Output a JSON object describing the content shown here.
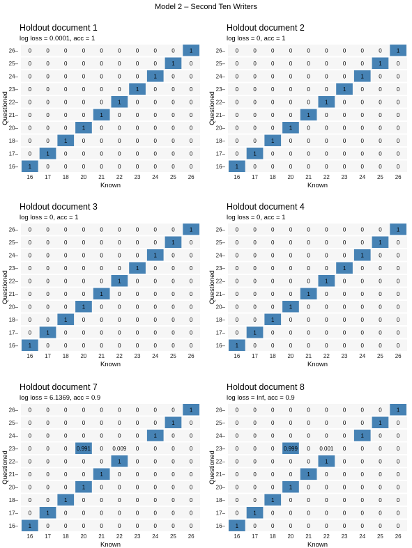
{
  "title": "Model 2 – Second Ten Writers",
  "colors": {
    "highlight": "#4682b4",
    "background": "#ffffff",
    "band": "#ececec"
  },
  "chart_data": [
    {
      "type": "heatmap",
      "title": "Holdout document 1",
      "subtitle": "log loss = 0.0001, acc = 1",
      "xlabel": "Known",
      "ylabel": "Questioned",
      "x": [
        "16",
        "17",
        "18",
        "20",
        "21",
        "22",
        "23",
        "24",
        "25",
        "26"
      ],
      "y": [
        "26",
        "25",
        "24",
        "23",
        "22",
        "21",
        "20",
        "18",
        "17",
        "16"
      ],
      "values": [
        [
          "0",
          "0",
          "0",
          "0",
          "0",
          "0",
          "0",
          "0",
          "0",
          "1"
        ],
        [
          "0",
          "0",
          "0",
          "0",
          "0",
          "0",
          "0",
          "0",
          "1",
          "0"
        ],
        [
          "0",
          "0",
          "0",
          "0",
          "0",
          "0",
          "0",
          "1",
          "0",
          "0"
        ],
        [
          "0",
          "0",
          "0",
          "0",
          "0",
          "0",
          "1",
          "0",
          "0",
          "0"
        ],
        [
          "0",
          "0",
          "0",
          "0",
          "0",
          "1",
          "0",
          "0",
          "0",
          "0"
        ],
        [
          "0",
          "0",
          "0",
          "0",
          "1",
          "0",
          "0",
          "0",
          "0",
          "0"
        ],
        [
          "0",
          "0",
          "0",
          "1",
          "0",
          "0",
          "0",
          "0",
          "0",
          "0"
        ],
        [
          "0",
          "0",
          "1",
          "0",
          "0",
          "0",
          "0",
          "0",
          "0",
          "0"
        ],
        [
          "0",
          "1",
          "0",
          "0",
          "0",
          "0",
          "0",
          "0",
          "0",
          "0"
        ],
        [
          "1",
          "0",
          "0",
          "0",
          "0",
          "0",
          "0",
          "0",
          "0",
          "0"
        ]
      ]
    },
    {
      "type": "heatmap",
      "title": "Holdout document 2",
      "subtitle": "log loss = 0, acc = 1",
      "xlabel": "Known",
      "ylabel": "Questioned",
      "x": [
        "16",
        "17",
        "18",
        "20",
        "21",
        "22",
        "23",
        "24",
        "25",
        "26"
      ],
      "y": [
        "26",
        "25",
        "24",
        "23",
        "22",
        "21",
        "20",
        "18",
        "17",
        "16"
      ],
      "values": [
        [
          "0",
          "0",
          "0",
          "0",
          "0",
          "0",
          "0",
          "0",
          "0",
          "1"
        ],
        [
          "0",
          "0",
          "0",
          "0",
          "0",
          "0",
          "0",
          "0",
          "1",
          "0"
        ],
        [
          "0",
          "0",
          "0",
          "0",
          "0",
          "0",
          "0",
          "1",
          "0",
          "0"
        ],
        [
          "0",
          "0",
          "0",
          "0",
          "0",
          "0",
          "1",
          "0",
          "0",
          "0"
        ],
        [
          "0",
          "0",
          "0",
          "0",
          "0",
          "1",
          "0",
          "0",
          "0",
          "0"
        ],
        [
          "0",
          "0",
          "0",
          "0",
          "1",
          "0",
          "0",
          "0",
          "0",
          "0"
        ],
        [
          "0",
          "0",
          "0",
          "1",
          "0",
          "0",
          "0",
          "0",
          "0",
          "0"
        ],
        [
          "0",
          "0",
          "1",
          "0",
          "0",
          "0",
          "0",
          "0",
          "0",
          "0"
        ],
        [
          "0",
          "1",
          "0",
          "0",
          "0",
          "0",
          "0",
          "0",
          "0",
          "0"
        ],
        [
          "1",
          "0",
          "0",
          "0",
          "0",
          "0",
          "0",
          "0",
          "0",
          "0"
        ]
      ]
    },
    {
      "type": "heatmap",
      "title": "Holdout document 3",
      "subtitle": "log loss = 0, acc = 1",
      "xlabel": "Known",
      "ylabel": "Questioned",
      "x": [
        "16",
        "17",
        "18",
        "20",
        "21",
        "22",
        "23",
        "24",
        "25",
        "26"
      ],
      "y": [
        "26",
        "25",
        "24",
        "23",
        "22",
        "21",
        "20",
        "18",
        "17",
        "16"
      ],
      "values": [
        [
          "0",
          "0",
          "0",
          "0",
          "0",
          "0",
          "0",
          "0",
          "0",
          "1"
        ],
        [
          "0",
          "0",
          "0",
          "0",
          "0",
          "0",
          "0",
          "0",
          "1",
          "0"
        ],
        [
          "0",
          "0",
          "0",
          "0",
          "0",
          "0",
          "0",
          "1",
          "0",
          "0"
        ],
        [
          "0",
          "0",
          "0",
          "0",
          "0",
          "0",
          "1",
          "0",
          "0",
          "0"
        ],
        [
          "0",
          "0",
          "0",
          "0",
          "0",
          "1",
          "0",
          "0",
          "0",
          "0"
        ],
        [
          "0",
          "0",
          "0",
          "0",
          "1",
          "0",
          "0",
          "0",
          "0",
          "0"
        ],
        [
          "0",
          "0",
          "0",
          "1",
          "0",
          "0",
          "0",
          "0",
          "0",
          "0"
        ],
        [
          "0",
          "0",
          "1",
          "0",
          "0",
          "0",
          "0",
          "0",
          "0",
          "0"
        ],
        [
          "0",
          "1",
          "0",
          "0",
          "0",
          "0",
          "0",
          "0",
          "0",
          "0"
        ],
        [
          "1",
          "0",
          "0",
          "0",
          "0",
          "0",
          "0",
          "0",
          "0",
          "0"
        ]
      ]
    },
    {
      "type": "heatmap",
      "title": "Holdout document 4",
      "subtitle": "log loss = 0, acc = 1",
      "xlabel": "Known",
      "ylabel": "Questioned",
      "x": [
        "16",
        "17",
        "18",
        "20",
        "21",
        "22",
        "23",
        "24",
        "25",
        "26"
      ],
      "y": [
        "26",
        "25",
        "24",
        "23",
        "22",
        "21",
        "20",
        "18",
        "17",
        "16"
      ],
      "values": [
        [
          "0",
          "0",
          "0",
          "0",
          "0",
          "0",
          "0",
          "0",
          "0",
          "1"
        ],
        [
          "0",
          "0",
          "0",
          "0",
          "0",
          "0",
          "0",
          "0",
          "1",
          "0"
        ],
        [
          "0",
          "0",
          "0",
          "0",
          "0",
          "0",
          "0",
          "1",
          "0",
          "0"
        ],
        [
          "0",
          "0",
          "0",
          "0",
          "0",
          "0",
          "1",
          "0",
          "0",
          "0"
        ],
        [
          "0",
          "0",
          "0",
          "0",
          "0",
          "1",
          "0",
          "0",
          "0",
          "0"
        ],
        [
          "0",
          "0",
          "0",
          "0",
          "1",
          "0",
          "0",
          "0",
          "0",
          "0"
        ],
        [
          "0",
          "0",
          "0",
          "1",
          "0",
          "0",
          "0",
          "0",
          "0",
          "0"
        ],
        [
          "0",
          "0",
          "1",
          "0",
          "0",
          "0",
          "0",
          "0",
          "0",
          "0"
        ],
        [
          "0",
          "1",
          "0",
          "0",
          "0",
          "0",
          "0",
          "0",
          "0",
          "0"
        ],
        [
          "1",
          "0",
          "0",
          "0",
          "0",
          "0",
          "0",
          "0",
          "0",
          "0"
        ]
      ]
    },
    {
      "type": "heatmap",
      "title": "Holdout document 7",
      "subtitle": "log loss = 6.1369, acc = 0.9",
      "xlabel": "Known",
      "ylabel": "Questioned",
      "x": [
        "16",
        "17",
        "18",
        "20",
        "21",
        "22",
        "23",
        "24",
        "25",
        "26"
      ],
      "y": [
        "26",
        "25",
        "24",
        "23",
        "22",
        "21",
        "20",
        "18",
        "17",
        "16"
      ],
      "values": [
        [
          "0",
          "0",
          "0",
          "0",
          "0",
          "0",
          "0",
          "0",
          "0",
          "1"
        ],
        [
          "0",
          "0",
          "0",
          "0",
          "0",
          "0",
          "0",
          "0",
          "1",
          "0"
        ],
        [
          "0",
          "0",
          "0",
          "0",
          "0",
          "0",
          "0",
          "1",
          "0",
          "0"
        ],
        [
          "0",
          "0",
          "0",
          "0.991",
          "0",
          "0.009",
          "0",
          "0",
          "0",
          "0"
        ],
        [
          "0",
          "0",
          "0",
          "0",
          "0",
          "1",
          "0",
          "0",
          "0",
          "0"
        ],
        [
          "0",
          "0",
          "0",
          "0",
          "1",
          "0",
          "0",
          "0",
          "0",
          "0"
        ],
        [
          "0",
          "0",
          "0",
          "1",
          "0",
          "0",
          "0",
          "0",
          "0",
          "0"
        ],
        [
          "0",
          "0",
          "1",
          "0",
          "0",
          "0",
          "0",
          "0",
          "0",
          "0"
        ],
        [
          "0",
          "1",
          "0",
          "0",
          "0",
          "0",
          "0",
          "0",
          "0",
          "0"
        ],
        [
          "1",
          "0",
          "0",
          "0",
          "0",
          "0",
          "0",
          "0",
          "0",
          "0"
        ]
      ]
    },
    {
      "type": "heatmap",
      "title": "Holdout document 8",
      "subtitle": "log loss = Inf, acc = 0.9",
      "xlabel": "Known",
      "ylabel": "Questioned",
      "x": [
        "16",
        "17",
        "18",
        "20",
        "21",
        "22",
        "23",
        "24",
        "25",
        "26"
      ],
      "y": [
        "26",
        "25",
        "24",
        "23",
        "22",
        "21",
        "20",
        "18",
        "17",
        "16"
      ],
      "values": [
        [
          "0",
          "0",
          "0",
          "0",
          "0",
          "0",
          "0",
          "0",
          "0",
          "1"
        ],
        [
          "0",
          "0",
          "0",
          "0",
          "0",
          "0",
          "0",
          "0",
          "1",
          "0"
        ],
        [
          "0",
          "0",
          "0",
          "0",
          "0",
          "0",
          "0",
          "1",
          "0",
          "0"
        ],
        [
          "0",
          "0",
          "0",
          "0.999",
          "0",
          "0.001",
          "0",
          "0",
          "0",
          "0"
        ],
        [
          "0",
          "0",
          "0",
          "0",
          "0",
          "1",
          "0",
          "0",
          "0",
          "0"
        ],
        [
          "0",
          "0",
          "0",
          "0",
          "1",
          "0",
          "0",
          "0",
          "0",
          "0"
        ],
        [
          "0",
          "0",
          "0",
          "1",
          "0",
          "0",
          "0",
          "0",
          "0",
          "0"
        ],
        [
          "0",
          "0",
          "1",
          "0",
          "0",
          "0",
          "0",
          "0",
          "0",
          "0"
        ],
        [
          "0",
          "1",
          "0",
          "0",
          "0",
          "0",
          "0",
          "0",
          "0",
          "0"
        ],
        [
          "1",
          "0",
          "0",
          "0",
          "0",
          "0",
          "0",
          "0",
          "0",
          "0"
        ]
      ]
    }
  ]
}
